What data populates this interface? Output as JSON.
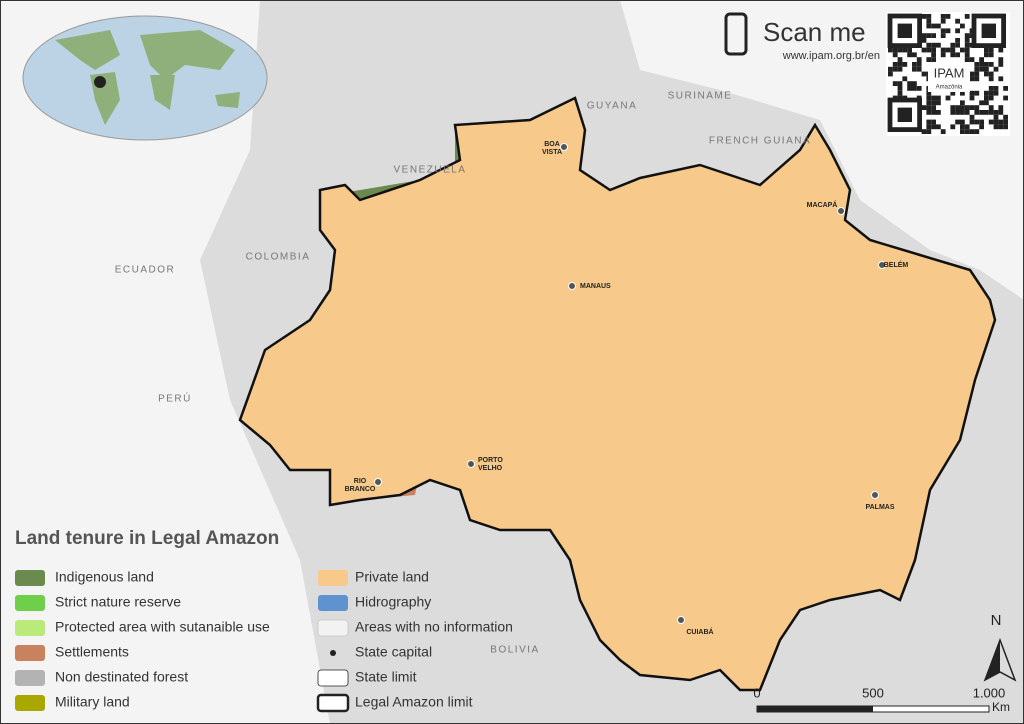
{
  "qr": {
    "title": "Scan me",
    "url": "www.ipam.org.br/en",
    "logo": "IPAM",
    "logo_sub": "Amazônia"
  },
  "countries": [
    "GUYANA",
    "SURINAME",
    "FRENCH GUIANA",
    "VENEZUELA",
    "COLOMBIA",
    "ECUADOR",
    "PERÚ",
    "BOLIVIA"
  ],
  "cities": [
    "BOA VISTA",
    "MACAPÁ",
    "BELÉM",
    "MANAUS",
    "PORTO VELHO",
    "RIO BRANCO",
    "PALMAS",
    "CUIABÁ"
  ],
  "legend": {
    "title": "Land tenure in Legal Amazon",
    "items": [
      {
        "label": "Indigenous land",
        "color": "#6b8a4e"
      },
      {
        "label": "Strict nature reserve",
        "color": "#6fcf4a"
      },
      {
        "label": "Protected area with sutanaible use",
        "color": "#b9ea7a"
      },
      {
        "label": "Settlements",
        "color": "#c8825e"
      },
      {
        "label": "Non destinated forest",
        "color": "#b3b3b3"
      },
      {
        "label": "Military land",
        "color": "#a9a800"
      },
      {
        "label": "Private land",
        "color": "#f7c98a"
      },
      {
        "label": "Hidrography",
        "color": "#5e93d0"
      },
      {
        "label": "Areas with no information",
        "color": "#f2f2f2"
      },
      {
        "label": "State capital"
      },
      {
        "label": "State limit"
      },
      {
        "label": "Legal Amazon limit"
      }
    ]
  },
  "scale": {
    "ticks": [
      "0",
      "500",
      "1.000"
    ],
    "unit": "Km"
  },
  "north": "N"
}
